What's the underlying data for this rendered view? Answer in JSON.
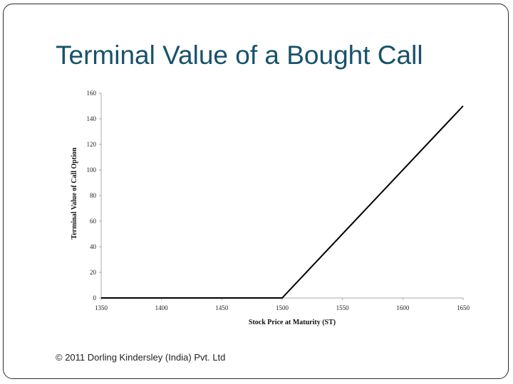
{
  "slide": {
    "title": "Terminal Value of a Bought Call",
    "footer": "© 2011 Dorling Kindersley (India) Pvt. Ltd"
  },
  "chart_data": {
    "type": "line",
    "title": "Terminal Value of a Bought Call",
    "xlabel": "Stock Price at Maturity (ST)",
    "ylabel": "Terminal Value of Call Option",
    "xlim": [
      1350,
      1650
    ],
    "ylim": [
      0,
      160
    ],
    "x_ticks": [
      1350,
      1400,
      1450,
      1500,
      1550,
      1600,
      1650
    ],
    "y_ticks": [
      0,
      20,
      40,
      60,
      80,
      100,
      120,
      140,
      160
    ],
    "grid": false,
    "series": [
      {
        "name": "Bought Call",
        "color": "#000000",
        "points": [
          [
            1350,
            0
          ],
          [
            1500,
            0
          ],
          [
            1650,
            150
          ]
        ]
      }
    ]
  }
}
